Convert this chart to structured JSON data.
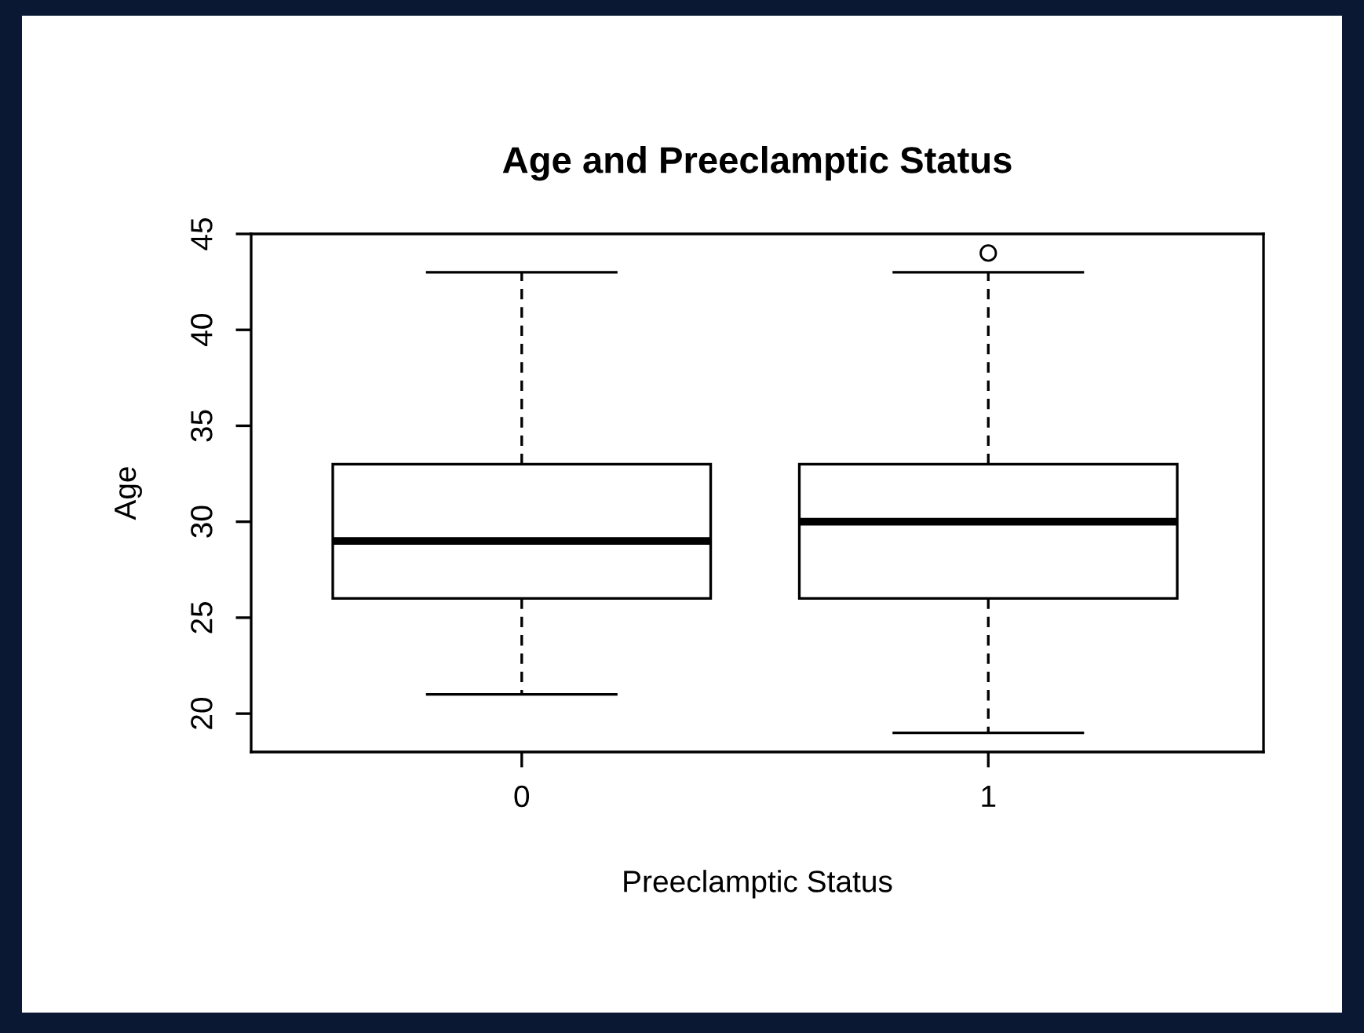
{
  "chart_data": {
    "type": "box",
    "title": "Age and Preeclamptic Status",
    "xlabel": "Preeclamptic Status",
    "ylabel": "Age",
    "categories": [
      "0",
      "1"
    ],
    "boxes": [
      {
        "low": 21,
        "q1": 26,
        "median": 29,
        "q3": 33,
        "high": 43
      },
      {
        "low": 19,
        "q1": 26,
        "median": 30,
        "q3": 33,
        "high": 43,
        "outliers": [
          44
        ]
      }
    ],
    "ylim": [
      18,
      45
    ],
    "yticks": [
      20,
      25,
      30,
      35,
      40,
      45
    ]
  }
}
